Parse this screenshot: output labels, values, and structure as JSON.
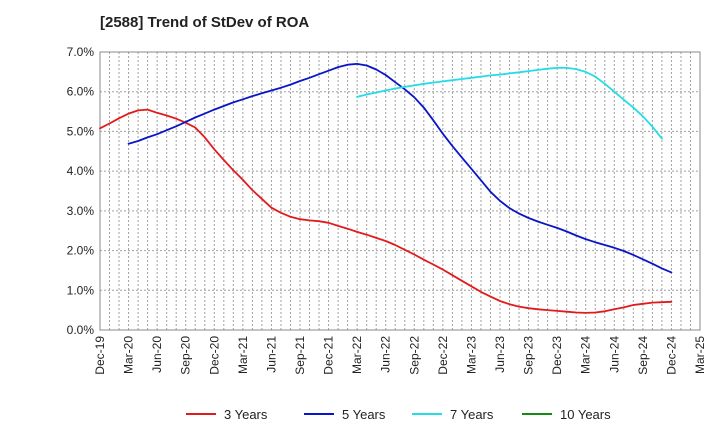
{
  "chart_data": {
    "type": "line",
    "title": "[2588]  Trend of StDev of ROA",
    "xlabel": "",
    "ylabel": "",
    "ylim": [
      0,
      7
    ],
    "grid": true,
    "legend_position": "bottom",
    "y_ticks": [
      "0.0%",
      "1.0%",
      "2.0%",
      "3.0%",
      "4.0%",
      "5.0%",
      "6.0%",
      "7.0%"
    ],
    "x_ticks": [
      "Dec-19",
      "Mar-20",
      "Jun-20",
      "Sep-20",
      "Dec-20",
      "Mar-21",
      "Jun-21",
      "Sep-21",
      "Dec-21",
      "Mar-22",
      "Jun-22",
      "Sep-22",
      "Dec-22",
      "Mar-23",
      "Jun-23",
      "Sep-23",
      "Dec-23",
      "Mar-24",
      "Jun-24",
      "Sep-24",
      "Dec-24",
      "Mar-25"
    ],
    "series": [
      {
        "name": "3 Years",
        "color": "#e31a1c",
        "values": [
          [
            "2019-12",
            5.08
          ],
          [
            "2020-01",
            5.2
          ],
          [
            "2020-02",
            5.33
          ],
          [
            "2020-03",
            5.45
          ],
          [
            "2020-04",
            5.53
          ],
          [
            "2020-05",
            5.55
          ],
          [
            "2020-06",
            5.47
          ],
          [
            "2020-07",
            5.4
          ],
          [
            "2020-08",
            5.32
          ],
          [
            "2020-09",
            5.22
          ],
          [
            "2020-10",
            5.1
          ],
          [
            "2020-11",
            4.85
          ],
          [
            "2020-12",
            4.55
          ],
          [
            "2021-01",
            4.28
          ],
          [
            "2021-02",
            4.02
          ],
          [
            "2021-03",
            3.78
          ],
          [
            "2021-04",
            3.52
          ],
          [
            "2021-05",
            3.3
          ],
          [
            "2021-06",
            3.08
          ],
          [
            "2021-07",
            2.95
          ],
          [
            "2021-08",
            2.85
          ],
          [
            "2021-09",
            2.79
          ],
          [
            "2021-10",
            2.76
          ],
          [
            "2021-11",
            2.74
          ],
          [
            "2021-12",
            2.7
          ],
          [
            "2022-01",
            2.62
          ],
          [
            "2022-02",
            2.55
          ],
          [
            "2022-03",
            2.47
          ],
          [
            "2022-04",
            2.4
          ],
          [
            "2022-05",
            2.32
          ],
          [
            "2022-06",
            2.24
          ],
          [
            "2022-07",
            2.14
          ],
          [
            "2022-08",
            2.02
          ],
          [
            "2022-09",
            1.9
          ],
          [
            "2022-10",
            1.77
          ],
          [
            "2022-11",
            1.65
          ],
          [
            "2022-12",
            1.52
          ],
          [
            "2023-01",
            1.38
          ],
          [
            "2023-02",
            1.24
          ],
          [
            "2023-03",
            1.1
          ],
          [
            "2023-04",
            0.96
          ],
          [
            "2023-05",
            0.84
          ],
          [
            "2023-06",
            0.73
          ],
          [
            "2023-07",
            0.65
          ],
          [
            "2023-08",
            0.59
          ],
          [
            "2023-09",
            0.55
          ],
          [
            "2023-10",
            0.52
          ],
          [
            "2023-11",
            0.5
          ],
          [
            "2023-12",
            0.48
          ],
          [
            "2024-01",
            0.46
          ],
          [
            "2024-02",
            0.44
          ],
          [
            "2024-03",
            0.43
          ],
          [
            "2024-04",
            0.44
          ],
          [
            "2024-05",
            0.47
          ],
          [
            "2024-06",
            0.52
          ],
          [
            "2024-07",
            0.57
          ],
          [
            "2024-08",
            0.63
          ],
          [
            "2024-09",
            0.66
          ],
          [
            "2024-10",
            0.69
          ],
          [
            "2024-11",
            0.7
          ],
          [
            "2024-12",
            0.71
          ]
        ]
      },
      {
        "name": "5 Years",
        "color": "#0a14c8",
        "values": [
          [
            "2020-03",
            4.69
          ],
          [
            "2020-04",
            4.76
          ],
          [
            "2020-05",
            4.85
          ],
          [
            "2020-06",
            4.93
          ],
          [
            "2020-07",
            5.03
          ],
          [
            "2020-08",
            5.13
          ],
          [
            "2020-09",
            5.24
          ],
          [
            "2020-10",
            5.35
          ],
          [
            "2020-11",
            5.45
          ],
          [
            "2020-12",
            5.55
          ],
          [
            "2021-01",
            5.64
          ],
          [
            "2021-02",
            5.73
          ],
          [
            "2021-03",
            5.81
          ],
          [
            "2021-04",
            5.89
          ],
          [
            "2021-05",
            5.96
          ],
          [
            "2021-06",
            6.03
          ],
          [
            "2021-07",
            6.1
          ],
          [
            "2021-08",
            6.18
          ],
          [
            "2021-09",
            6.27
          ],
          [
            "2021-10",
            6.35
          ],
          [
            "2021-11",
            6.44
          ],
          [
            "2021-12",
            6.53
          ],
          [
            "2022-01",
            6.62
          ],
          [
            "2022-02",
            6.68
          ],
          [
            "2022-03",
            6.7
          ],
          [
            "2022-04",
            6.66
          ],
          [
            "2022-05",
            6.56
          ],
          [
            "2022-06",
            6.42
          ],
          [
            "2022-07",
            6.24
          ],
          [
            "2022-08",
            6.06
          ],
          [
            "2022-09",
            5.86
          ],
          [
            "2022-10",
            5.6
          ],
          [
            "2022-11",
            5.28
          ],
          [
            "2022-12",
            4.94
          ],
          [
            "2023-01",
            4.63
          ],
          [
            "2023-02",
            4.34
          ],
          [
            "2023-03",
            4.06
          ],
          [
            "2023-04",
            3.77
          ],
          [
            "2023-05",
            3.48
          ],
          [
            "2023-06",
            3.25
          ],
          [
            "2023-07",
            3.07
          ],
          [
            "2023-08",
            2.93
          ],
          [
            "2023-09",
            2.82
          ],
          [
            "2023-10",
            2.73
          ],
          [
            "2023-11",
            2.65
          ],
          [
            "2023-12",
            2.57
          ],
          [
            "2024-01",
            2.48
          ],
          [
            "2024-02",
            2.38
          ],
          [
            "2024-03",
            2.29
          ],
          [
            "2024-04",
            2.21
          ],
          [
            "2024-05",
            2.14
          ],
          [
            "2024-06",
            2.07
          ],
          [
            "2024-07",
            1.99
          ],
          [
            "2024-08",
            1.89
          ],
          [
            "2024-09",
            1.78
          ],
          [
            "2024-10",
            1.67
          ],
          [
            "2024-11",
            1.55
          ],
          [
            "2024-12",
            1.45
          ]
        ]
      },
      {
        "name": "7 Years",
        "color": "#22dde6",
        "values": [
          [
            "2022-03",
            5.87
          ],
          [
            "2022-04",
            5.93
          ],
          [
            "2022-05",
            5.98
          ],
          [
            "2022-06",
            6.03
          ],
          [
            "2022-07",
            6.08
          ],
          [
            "2022-08",
            6.12
          ],
          [
            "2022-09",
            6.16
          ],
          [
            "2022-10",
            6.2
          ],
          [
            "2022-11",
            6.23
          ],
          [
            "2022-12",
            6.26
          ],
          [
            "2023-01",
            6.29
          ],
          [
            "2023-02",
            6.32
          ],
          [
            "2023-03",
            6.35
          ],
          [
            "2023-04",
            6.38
          ],
          [
            "2023-05",
            6.41
          ],
          [
            "2023-06",
            6.43
          ],
          [
            "2023-07",
            6.46
          ],
          [
            "2023-08",
            6.49
          ],
          [
            "2023-09",
            6.52
          ],
          [
            "2023-10",
            6.55
          ],
          [
            "2023-11",
            6.58
          ],
          [
            "2023-12",
            6.6
          ],
          [
            "2024-01",
            6.6
          ],
          [
            "2024-02",
            6.57
          ],
          [
            "2024-03",
            6.5
          ],
          [
            "2024-04",
            6.38
          ],
          [
            "2024-05",
            6.2
          ],
          [
            "2024-06",
            6.0
          ],
          [
            "2024-07",
            5.8
          ],
          [
            "2024-08",
            5.6
          ],
          [
            "2024-09",
            5.38
          ],
          [
            "2024-10",
            5.12
          ],
          [
            "2024-11",
            4.82
          ]
        ]
      },
      {
        "name": "10 Years",
        "color": "#138c13",
        "values": []
      }
    ]
  }
}
